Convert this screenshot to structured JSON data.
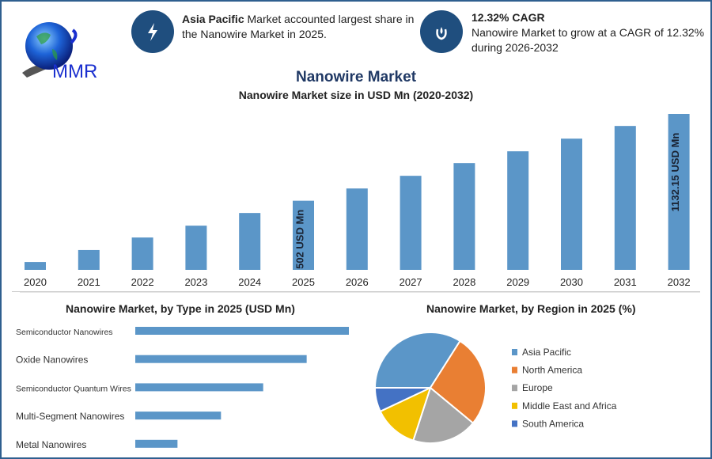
{
  "header": {
    "logo_text": "MMR",
    "insight1": {
      "bold": "Asia Pacific",
      "text": " Market accounted largest share in the Nanowire Market in 2025.",
      "icon": "lightning-icon"
    },
    "insight2": {
      "bold": "12.32% CAGR",
      "text": "Nanowire Market to grow at a CAGR of 12.32% during 2026-2032",
      "icon": "growth-drop-icon"
    }
  },
  "colors": {
    "bar": "#5b96c8",
    "accent": "#1f4e7e",
    "title": "#1f3864"
  },
  "chart_data": [
    {
      "type": "bar",
      "title": "Nanowire Market",
      "subtitle": "Nanowire Market size in USD Mn (2020-2032)",
      "categories": [
        "2020",
        "2021",
        "2022",
        "2023",
        "2024",
        "2025",
        "2026",
        "2027",
        "2028",
        "2029",
        "2030",
        "2031",
        "2032"
      ],
      "values": [
        57,
        144,
        235,
        321,
        413,
        502,
        591,
        683,
        775,
        861,
        953,
        1045,
        1132.15
      ],
      "data_labels": {
        "2025": "502 USD Mn",
        "2032": "1132.15 USD Mn"
      },
      "grid": false
    },
    {
      "type": "bar",
      "orientation": "horizontal",
      "title": "Nanowire Market, by Type in 2025 (USD Mn)",
      "categories": [
        "Semiconductor Nanowires",
        "Oxide Nanowires",
        "Semiconductor Quantum Wires",
        "Multi-Segment Nanowires",
        "Metal Nanowires"
      ],
      "values": [
        167,
        134,
        100,
        67,
        33
      ],
      "grid": false
    },
    {
      "type": "pie",
      "title": "Nanowire Market, by Region in 2025 (%)",
      "legend_position": "right",
      "slices": [
        {
          "label": "Asia Pacific",
          "value": 34,
          "color": "#5b96c8"
        },
        {
          "label": "North America",
          "value": 27,
          "color": "#e97f33"
        },
        {
          "label": "Europe",
          "value": 19,
          "color": "#a5a5a5"
        },
        {
          "label": "Middle East and Africa",
          "value": 13,
          "color": "#f2c000"
        },
        {
          "label": "South America",
          "value": 7,
          "color": "#4472c4"
        }
      ]
    }
  ]
}
